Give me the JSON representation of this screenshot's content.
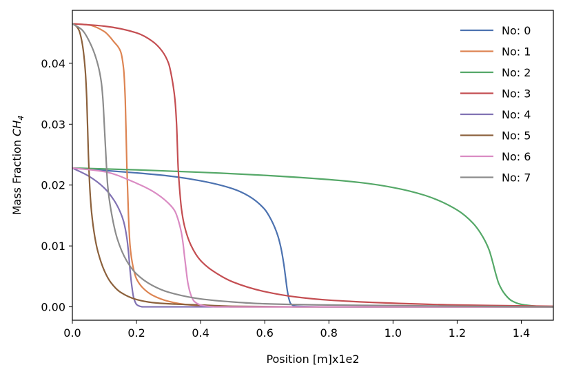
{
  "chart_data": {
    "type": "line",
    "title": "",
    "xlabel": "Position [m]x1e2",
    "ylabel_prefix": "Mass Fraction ",
    "ylabel_species": "CH",
    "ylabel_subscript": "4",
    "xlim": [
      0.0,
      1.5
    ],
    "ylim": [
      -0.0022,
      0.0487
    ],
    "xticks": [
      0.0,
      0.2,
      0.4,
      0.6,
      0.8,
      1.0,
      1.2,
      1.4
    ],
    "xtick_labels": [
      "0.0",
      "0.2",
      "0.4",
      "0.6",
      "0.8",
      "1.0",
      "1.2",
      "1.4"
    ],
    "yticks": [
      0.0,
      0.01,
      0.02,
      0.03,
      0.04
    ],
    "ytick_labels": [
      "0.00",
      "0.01",
      "0.02",
      "0.03",
      "0.04"
    ],
    "grid": false,
    "legend_position": "top-right",
    "series": [
      {
        "name": "No: 0",
        "color": "#4c72b0",
        "x": [
          0.0,
          0.1,
          0.2,
          0.3,
          0.4,
          0.5,
          0.55,
          0.6,
          0.62,
          0.64,
          0.65,
          0.66,
          0.665,
          0.67,
          0.675,
          0.68,
          0.69,
          0.7,
          0.8,
          1.0,
          1.5
        ],
        "y": [
          0.0228,
          0.0224,
          0.022,
          0.0215,
          0.0207,
          0.0194,
          0.0182,
          0.016,
          0.0143,
          0.0118,
          0.0098,
          0.0068,
          0.0048,
          0.0028,
          0.0014,
          0.0006,
          0.0002,
          0.0001,
          0.0,
          0.0,
          0.0
        ]
      },
      {
        "name": "No: 1",
        "color": "#dd8452",
        "x": [
          0.0,
          0.05,
          0.1,
          0.13,
          0.15,
          0.16,
          0.165,
          0.17,
          0.175,
          0.18,
          0.19,
          0.2,
          0.22,
          0.25,
          0.3,
          0.35,
          0.4,
          0.45,
          0.5,
          0.6,
          0.8,
          1.5
        ],
        "y": [
          0.0465,
          0.0463,
          0.0452,
          0.0435,
          0.042,
          0.039,
          0.034,
          0.023,
          0.015,
          0.01,
          0.0064,
          0.0046,
          0.0031,
          0.0019,
          0.0009,
          0.0004,
          0.0002,
          0.0001,
          0.0,
          0.0,
          0.0,
          0.0
        ]
      },
      {
        "name": "No: 2",
        "color": "#55a868",
        "x": [
          0.0,
          0.2,
          0.4,
          0.6,
          0.8,
          0.9,
          1.0,
          1.1,
          1.2,
          1.25,
          1.28,
          1.3,
          1.31,
          1.32,
          1.33,
          1.35,
          1.37,
          1.4,
          1.45,
          1.5
        ],
        "y": [
          0.0228,
          0.0225,
          0.0221,
          0.0216,
          0.0209,
          0.0204,
          0.0196,
          0.0183,
          0.0159,
          0.0137,
          0.0115,
          0.0093,
          0.0075,
          0.0055,
          0.0038,
          0.002,
          0.001,
          0.0004,
          0.0001,
          0.0
        ]
      },
      {
        "name": "No: 3",
        "color": "#c44e52",
        "x": [
          0.0,
          0.1,
          0.2,
          0.25,
          0.28,
          0.3,
          0.31,
          0.32,
          0.325,
          0.33,
          0.335,
          0.34,
          0.35,
          0.37,
          0.4,
          0.45,
          0.5,
          0.6,
          0.7,
          0.8,
          1.0,
          1.2,
          1.5
        ],
        "y": [
          0.0465,
          0.0461,
          0.045,
          0.0436,
          0.042,
          0.04,
          0.0377,
          0.034,
          0.03,
          0.0228,
          0.019,
          0.0162,
          0.0132,
          0.0101,
          0.0076,
          0.0055,
          0.0041,
          0.0025,
          0.0016,
          0.0011,
          0.0006,
          0.0003,
          0.0001
        ]
      },
      {
        "name": "No: 4",
        "color": "#8172b3",
        "x": [
          0.0,
          0.05,
          0.1,
          0.13,
          0.15,
          0.16,
          0.17,
          0.175,
          0.18,
          0.185,
          0.19,
          0.195,
          0.2,
          0.21,
          0.22,
          0.25,
          0.3,
          0.5,
          1.5
        ],
        "y": [
          0.0228,
          0.0215,
          0.0195,
          0.0175,
          0.0155,
          0.014,
          0.0113,
          0.009,
          0.006,
          0.0036,
          0.0018,
          0.0009,
          0.0004,
          0.0001,
          0.0,
          0.0,
          0.0,
          0.0,
          0.0
        ]
      },
      {
        "name": "No: 5",
        "color": "#8c613c",
        "x": [
          0.0,
          0.01,
          0.02,
          0.03,
          0.04,
          0.045,
          0.05,
          0.055,
          0.06,
          0.07,
          0.08,
          0.1,
          0.12,
          0.15,
          0.2,
          0.25,
          0.3,
          0.4,
          0.5,
          0.7,
          1.5
        ],
        "y": [
          0.0465,
          0.0462,
          0.0455,
          0.0435,
          0.039,
          0.034,
          0.025,
          0.019,
          0.0155,
          0.0115,
          0.009,
          0.0059,
          0.004,
          0.0024,
          0.0012,
          0.0007,
          0.0005,
          0.0003,
          0.0001,
          0.0,
          0.0
        ]
      },
      {
        "name": "No: 6",
        "color": "#da8bc3",
        "x": [
          0.0,
          0.1,
          0.2,
          0.25,
          0.3,
          0.32,
          0.33,
          0.34,
          0.345,
          0.35,
          0.355,
          0.36,
          0.37,
          0.38,
          0.4,
          0.42,
          0.45,
          0.5,
          1.5
        ],
        "y": [
          0.0228,
          0.0222,
          0.0203,
          0.019,
          0.017,
          0.0157,
          0.0143,
          0.0122,
          0.0105,
          0.0082,
          0.006,
          0.004,
          0.0019,
          0.0009,
          0.0003,
          0.0001,
          0.0,
          0.0,
          0.0
        ]
      },
      {
        "name": "No: 7",
        "color": "#8c8c8c",
        "x": [
          0.0,
          0.03,
          0.06,
          0.08,
          0.09,
          0.095,
          0.1,
          0.105,
          0.11,
          0.12,
          0.14,
          0.17,
          0.2,
          0.25,
          0.3,
          0.4,
          0.5,
          0.6,
          0.8,
          1.0,
          1.2,
          1.5
        ],
        "y": [
          0.0465,
          0.0455,
          0.0428,
          0.0397,
          0.037,
          0.0343,
          0.0295,
          0.0245,
          0.02,
          0.016,
          0.0112,
          0.0075,
          0.0054,
          0.0035,
          0.0024,
          0.0013,
          0.0008,
          0.0005,
          0.0003,
          0.0002,
          0.0001,
          0.0
        ]
      }
    ]
  }
}
